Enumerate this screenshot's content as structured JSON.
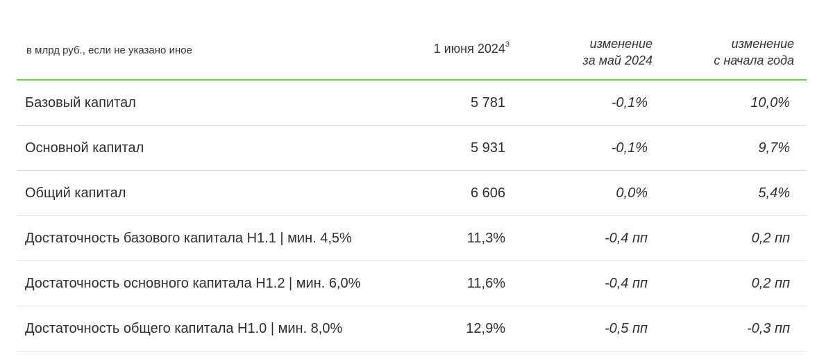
{
  "header": {
    "units": "в млрд руб., если не указано иное",
    "date_col": "1 июня 2024",
    "date_footnote": "3",
    "month_change_line1": "изменение",
    "month_change_line2": "за май 2024",
    "ytd_change_line1": "изменение",
    "ytd_change_line2": "с начала года"
  },
  "rows": [
    {
      "label": "Базовый капитал",
      "value": "5 781",
      "month": "-0,1%",
      "ytd": "10,0%"
    },
    {
      "label": "Основной капитал",
      "value": "5 931",
      "month": "-0,1%",
      "ytd": "9,7%"
    },
    {
      "label": "Общий капитал",
      "value": "6 606",
      "month": "0,0%",
      "ytd": "5,4%"
    },
    {
      "label": "Достаточность базового капитала Н1.1 | мин. 4,5%",
      "value": "11,3%",
      "month": "-0,4 пп",
      "ytd": "0,2 пп"
    },
    {
      "label": "Достаточность основного капитала Н1.2 | мин. 6,0%",
      "value": "11,6%",
      "month": "-0,4 пп",
      "ytd": "0,2 пп"
    },
    {
      "label": "Достаточность общего капитала Н1.0 | мин. 8,0%",
      "value": "12,9%",
      "month": "-0,5 пп",
      "ytd": "-0,3 пп"
    }
  ],
  "colors": {
    "header_rule": "#6fcf4a",
    "row_divider": "#e3e3e3",
    "text": "#2e2e2e"
  }
}
